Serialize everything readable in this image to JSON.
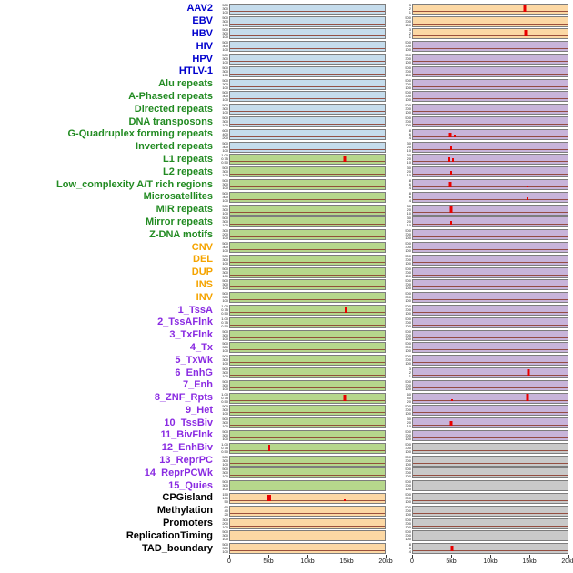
{
  "palette": {
    "label_colors": {
      "virus": "#0000cd",
      "repeat": "#228b22",
      "sv": "#f5a400",
      "chromhmm": "#8a2be2",
      "annotation": "#000000"
    },
    "panel_colors": {
      "blue": "#c5dcec",
      "green": "#b6d78c",
      "orange": "#fcd8a4",
      "purple": "#c8b4da",
      "gray": "#c9c9c9"
    },
    "spike_color": "#e80000",
    "baseline_color": "#8b3a2a",
    "panel_border": "#7d7d7d"
  },
  "ytick_presets": {
    "c500": [
      "500",
      "300",
      "100"
    ],
    "c600": [
      "600",
      "400",
      "200"
    ],
    "c300": [
      "300",
      "200",
      "100"
    ],
    "c150": [
      "150",
      "100",
      "50"
    ],
    "prob": [
      "1.00",
      "0.75",
      "0.50",
      "0.25",
      "0.00"
    ],
    "small": [
      "3",
      "2",
      "1"
    ],
    "c8": [
      "8",
      "6",
      "4",
      "2"
    ],
    "c30": [
      "30",
      "20",
      "10"
    ],
    "c60": [
      "60",
      "40",
      "20"
    ]
  },
  "chart_data": {
    "type": "bar",
    "x_unit": "kb",
    "x_range": [
      0,
      20
    ],
    "x_ticks": [
      "0",
      "5kb",
      "10kb",
      "15kb",
      "20kb"
    ],
    "x_tick_kb": [
      0,
      5,
      10,
      15,
      20
    ],
    "columns": [
      "left",
      "right"
    ],
    "rows": [
      {
        "label": "AAV2",
        "group": "virus",
        "left": {
          "bg": "blue",
          "yt": "c500",
          "spikes": []
        },
        "right": {
          "bg": "orange",
          "yt": "small",
          "spikes": [
            {
              "x": 14.5,
              "h": 0.95,
              "w": 3
            }
          ]
        }
      },
      {
        "label": "EBV",
        "group": "virus",
        "left": {
          "bg": "blue",
          "yt": "c500",
          "spikes": []
        },
        "right": {
          "bg": "orange",
          "yt": "c500",
          "spikes": []
        }
      },
      {
        "label": "HBV",
        "group": "virus",
        "left": {
          "bg": "blue",
          "yt": "c500",
          "spikes": []
        },
        "right": {
          "bg": "orange",
          "yt": "small",
          "spikes": [
            {
              "x": 14.6,
              "h": 0.95,
              "w": 3
            }
          ]
        }
      },
      {
        "label": "HIV",
        "group": "virus",
        "left": {
          "bg": "blue",
          "yt": "c500",
          "spikes": []
        },
        "right": {
          "bg": "purple",
          "yt": "c500",
          "spikes": []
        }
      },
      {
        "label": "HPV",
        "group": "virus",
        "left": {
          "bg": "blue",
          "yt": "c500",
          "spikes": []
        },
        "right": {
          "bg": "purple",
          "yt": "c500",
          "spikes": []
        }
      },
      {
        "label": "HTLV-1",
        "group": "virus",
        "left": {
          "bg": "blue",
          "yt": "c500",
          "spikes": []
        },
        "right": {
          "bg": "purple",
          "yt": "c500",
          "spikes": []
        }
      },
      {
        "label": "Alu repeats",
        "group": "repeat",
        "left": {
          "bg": "blue",
          "yt": "c500",
          "spikes": []
        },
        "right": {
          "bg": "purple",
          "yt": "c500",
          "spikes": []
        }
      },
      {
        "label": "A-Phased repeats",
        "group": "repeat",
        "left": {
          "bg": "blue",
          "yt": "c500",
          "spikes": []
        },
        "right": {
          "bg": "purple",
          "yt": "c500",
          "spikes": []
        }
      },
      {
        "label": "Directed repeats",
        "group": "repeat",
        "left": {
          "bg": "blue",
          "yt": "c500",
          "spikes": []
        },
        "right": {
          "bg": "purple",
          "yt": "c500",
          "spikes": []
        }
      },
      {
        "label": "DNA transposons",
        "group": "repeat",
        "left": {
          "bg": "blue",
          "yt": "c500",
          "spikes": []
        },
        "right": {
          "bg": "purple",
          "yt": "c500",
          "spikes": []
        }
      },
      {
        "label": "G-Quadruplex forming repeats",
        "group": "repeat",
        "left": {
          "bg": "blue",
          "yt": "c600",
          "spikes": []
        },
        "right": {
          "bg": "purple",
          "yt": "c8",
          "spikes": [
            {
              "x": 4.8,
              "h": 0.6,
              "w": 3
            },
            {
              "x": 5.4,
              "h": 0.35,
              "w": 2
            }
          ]
        }
      },
      {
        "label": "Inverted repeats",
        "group": "repeat",
        "left": {
          "bg": "blue",
          "yt": "c500",
          "spikes": []
        },
        "right": {
          "bg": "purple",
          "yt": "c30",
          "spikes": [
            {
              "x": 4.9,
              "h": 0.45,
              "w": 2
            }
          ]
        }
      },
      {
        "label": "L1 repeats",
        "group": "repeat",
        "left": {
          "bg": "green",
          "yt": "prob",
          "spikes": [
            {
              "x": 14.8,
              "h": 0.85,
              "w": 3
            }
          ]
        },
        "right": {
          "bg": "purple",
          "yt": "c30",
          "spikes": [
            {
              "x": 4.7,
              "h": 0.7,
              "w": 2
            },
            {
              "x": 5.2,
              "h": 0.5,
              "w": 2
            }
          ]
        }
      },
      {
        "label": "L2 repeats",
        "group": "repeat",
        "left": {
          "bg": "green",
          "yt": "c500",
          "spikes": []
        },
        "right": {
          "bg": "purple",
          "yt": "c30",
          "spikes": [
            {
              "x": 4.9,
              "h": 0.5,
              "w": 2
            }
          ]
        }
      },
      {
        "label": "Low_complexity A/T rich regions",
        "group": "repeat",
        "left": {
          "bg": "green",
          "yt": "c500",
          "spikes": []
        },
        "right": {
          "bg": "purple",
          "yt": "c8",
          "spikes": [
            {
              "x": 4.8,
              "h": 0.8,
              "w": 3
            },
            {
              "x": 14.8,
              "h": 0.3,
              "w": 2
            }
          ]
        }
      },
      {
        "label": "Microsatellites",
        "group": "repeat",
        "left": {
          "bg": "green",
          "yt": "c500",
          "spikes": []
        },
        "right": {
          "bg": "purple",
          "yt": "c8",
          "spikes": [
            {
              "x": 14.8,
              "h": 0.35,
              "w": 2
            }
          ]
        }
      },
      {
        "label": "MIR repeats",
        "group": "repeat",
        "left": {
          "bg": "green",
          "yt": "c500",
          "spikes": []
        },
        "right": {
          "bg": "purple",
          "yt": "c30",
          "spikes": [
            {
              "x": 4.9,
              "h": 0.9,
              "w": 3
            }
          ]
        }
      },
      {
        "label": "Mirror repeats",
        "group": "repeat",
        "left": {
          "bg": "green",
          "yt": "c500",
          "spikes": []
        },
        "right": {
          "bg": "purple",
          "yt": "c30",
          "spikes": [
            {
              "x": 4.9,
              "h": 0.5,
              "w": 2
            }
          ]
        }
      },
      {
        "label": "Z-DNA motifs",
        "group": "repeat",
        "left": {
          "bg": "green",
          "yt": "c300",
          "spikes": []
        },
        "right": {
          "bg": "purple",
          "yt": "c500",
          "spikes": []
        }
      },
      {
        "label": "CNV",
        "group": "sv",
        "left": {
          "bg": "green",
          "yt": "c500",
          "spikes": []
        },
        "right": {
          "bg": "purple",
          "yt": "c500",
          "spikes": []
        }
      },
      {
        "label": "DEL",
        "group": "sv",
        "left": {
          "bg": "green",
          "yt": "c500",
          "spikes": []
        },
        "right": {
          "bg": "purple",
          "yt": "c500",
          "spikes": []
        }
      },
      {
        "label": "DUP",
        "group": "sv",
        "left": {
          "bg": "green",
          "yt": "c500",
          "spikes": []
        },
        "right": {
          "bg": "purple",
          "yt": "c500",
          "spikes": []
        }
      },
      {
        "label": "INS",
        "group": "sv",
        "left": {
          "bg": "green",
          "yt": "c500",
          "spikes": []
        },
        "right": {
          "bg": "purple",
          "yt": "c500",
          "spikes": []
        }
      },
      {
        "label": "INV",
        "group": "sv",
        "left": {
          "bg": "green",
          "yt": "c500",
          "spikes": []
        },
        "right": {
          "bg": "purple",
          "yt": "c500",
          "spikes": []
        }
      },
      {
        "label": "1_TssA",
        "group": "chromhmm",
        "left": {
          "bg": "green",
          "yt": "prob",
          "spikes": [
            {
              "x": 14.9,
              "h": 0.8,
              "w": 2
            }
          ]
        },
        "right": {
          "bg": "purple",
          "yt": "c500",
          "spikes": []
        }
      },
      {
        "label": "2_TssAFlnk",
        "group": "chromhmm",
        "left": {
          "bg": "green",
          "yt": "prob",
          "spikes": []
        },
        "right": {
          "bg": "purple",
          "yt": "c500",
          "spikes": []
        }
      },
      {
        "label": "3_TxFlnk",
        "group": "chromhmm",
        "left": {
          "bg": "green",
          "yt": "c500",
          "spikes": []
        },
        "right": {
          "bg": "purple",
          "yt": "c500",
          "spikes": []
        }
      },
      {
        "label": "4_Tx",
        "group": "chromhmm",
        "left": {
          "bg": "green",
          "yt": "c500",
          "spikes": []
        },
        "right": {
          "bg": "purple",
          "yt": "c500",
          "spikes": []
        }
      },
      {
        "label": "5_TxWk",
        "group": "chromhmm",
        "left": {
          "bg": "green",
          "yt": "c500",
          "spikes": []
        },
        "right": {
          "bg": "purple",
          "yt": "c500",
          "spikes": []
        }
      },
      {
        "label": "6_EnhG",
        "group": "chromhmm",
        "left": {
          "bg": "green",
          "yt": "c500",
          "spikes": []
        },
        "right": {
          "bg": "purple",
          "yt": "small",
          "spikes": [
            {
              "x": 14.9,
              "h": 0.85,
              "w": 3
            }
          ]
        }
      },
      {
        "label": "7_Enh",
        "group": "chromhmm",
        "left": {
          "bg": "green",
          "yt": "c500",
          "spikes": []
        },
        "right": {
          "bg": "purple",
          "yt": "c500",
          "spikes": []
        }
      },
      {
        "label": "8_ZNF_Rpts",
        "group": "chromhmm",
        "left": {
          "bg": "green",
          "yt": "prob",
          "spikes": [
            {
              "x": 14.8,
              "h": 0.8,
              "w": 3
            }
          ]
        },
        "right": {
          "bg": "purple",
          "yt": "c60",
          "spikes": [
            {
              "x": 14.8,
              "h": 0.9,
              "w": 3
            },
            {
              "x": 5.0,
              "h": 0.25,
              "w": 2
            }
          ]
        }
      },
      {
        "label": "9_Het",
        "group": "chromhmm",
        "left": {
          "bg": "green",
          "yt": "c500",
          "spikes": []
        },
        "right": {
          "bg": "purple",
          "yt": "c500",
          "spikes": []
        }
      },
      {
        "label": "10_TssBiv",
        "group": "chromhmm",
        "left": {
          "bg": "green",
          "yt": "c500",
          "spikes": []
        },
        "right": {
          "bg": "purple",
          "yt": "c30",
          "spikes": [
            {
              "x": 4.9,
              "h": 0.7,
              "w": 3
            }
          ]
        }
      },
      {
        "label": "11_BivFlnk",
        "group": "chromhmm",
        "left": {
          "bg": "green",
          "yt": "c500",
          "spikes": []
        },
        "right": {
          "bg": "purple",
          "yt": "c500",
          "spikes": []
        }
      },
      {
        "label": "12_EnhBiv",
        "group": "chromhmm",
        "left": {
          "bg": "green",
          "yt": "prob",
          "spikes": [
            {
              "x": 5.0,
              "h": 0.8,
              "w": 2
            }
          ]
        },
        "right": {
          "bg": "gray",
          "yt": "c500",
          "spikes": []
        }
      },
      {
        "label": "13_ReprPC",
        "group": "chromhmm",
        "left": {
          "bg": "green",
          "yt": "c500",
          "spikes": []
        },
        "right": {
          "bg": "gray",
          "yt": "c500",
          "spikes": []
        }
      },
      {
        "label": "14_ReprPCWk",
        "group": "chromhmm",
        "left": {
          "bg": "green",
          "yt": "c500",
          "spikes": []
        },
        "right": {
          "bg": "gray",
          "yt": "c500",
          "spikes": []
        }
      },
      {
        "label": "15_Quies",
        "group": "chromhmm",
        "left": {
          "bg": "green",
          "yt": "c500",
          "spikes": []
        },
        "right": {
          "bg": "gray",
          "yt": "c500",
          "spikes": []
        }
      },
      {
        "label": "CPGisland",
        "group": "annotation",
        "left": {
          "bg": "orange",
          "yt": "c150",
          "spikes": [
            {
              "x": 5.0,
              "h": 0.9,
              "w": 4
            },
            {
              "x": 14.8,
              "h": 0.3,
              "w": 2
            }
          ]
        },
        "right": {
          "bg": "gray",
          "yt": "c500",
          "spikes": []
        }
      },
      {
        "label": "Methylation",
        "group": "annotation",
        "left": {
          "bg": "orange",
          "yt": "c60",
          "spikes": []
        },
        "right": {
          "bg": "gray",
          "yt": "c500",
          "spikes": []
        }
      },
      {
        "label": "Promoters",
        "group": "annotation",
        "left": {
          "bg": "orange",
          "yt": "c300",
          "spikes": []
        },
        "right": {
          "bg": "gray",
          "yt": "c500",
          "spikes": []
        }
      },
      {
        "label": "ReplicationTiming",
        "group": "annotation",
        "left": {
          "bg": "orange",
          "yt": "c500",
          "spikes": []
        },
        "right": {
          "bg": "gray",
          "yt": "c500",
          "spikes": []
        }
      },
      {
        "label": "TAD_boundary",
        "group": "annotation",
        "left": {
          "bg": "orange",
          "yt": "c500",
          "spikes": []
        },
        "right": {
          "bg": "gray",
          "yt": "c8",
          "spikes": [
            {
              "x": 5.0,
              "h": 0.8,
              "w": 3
            }
          ]
        }
      }
    ]
  }
}
